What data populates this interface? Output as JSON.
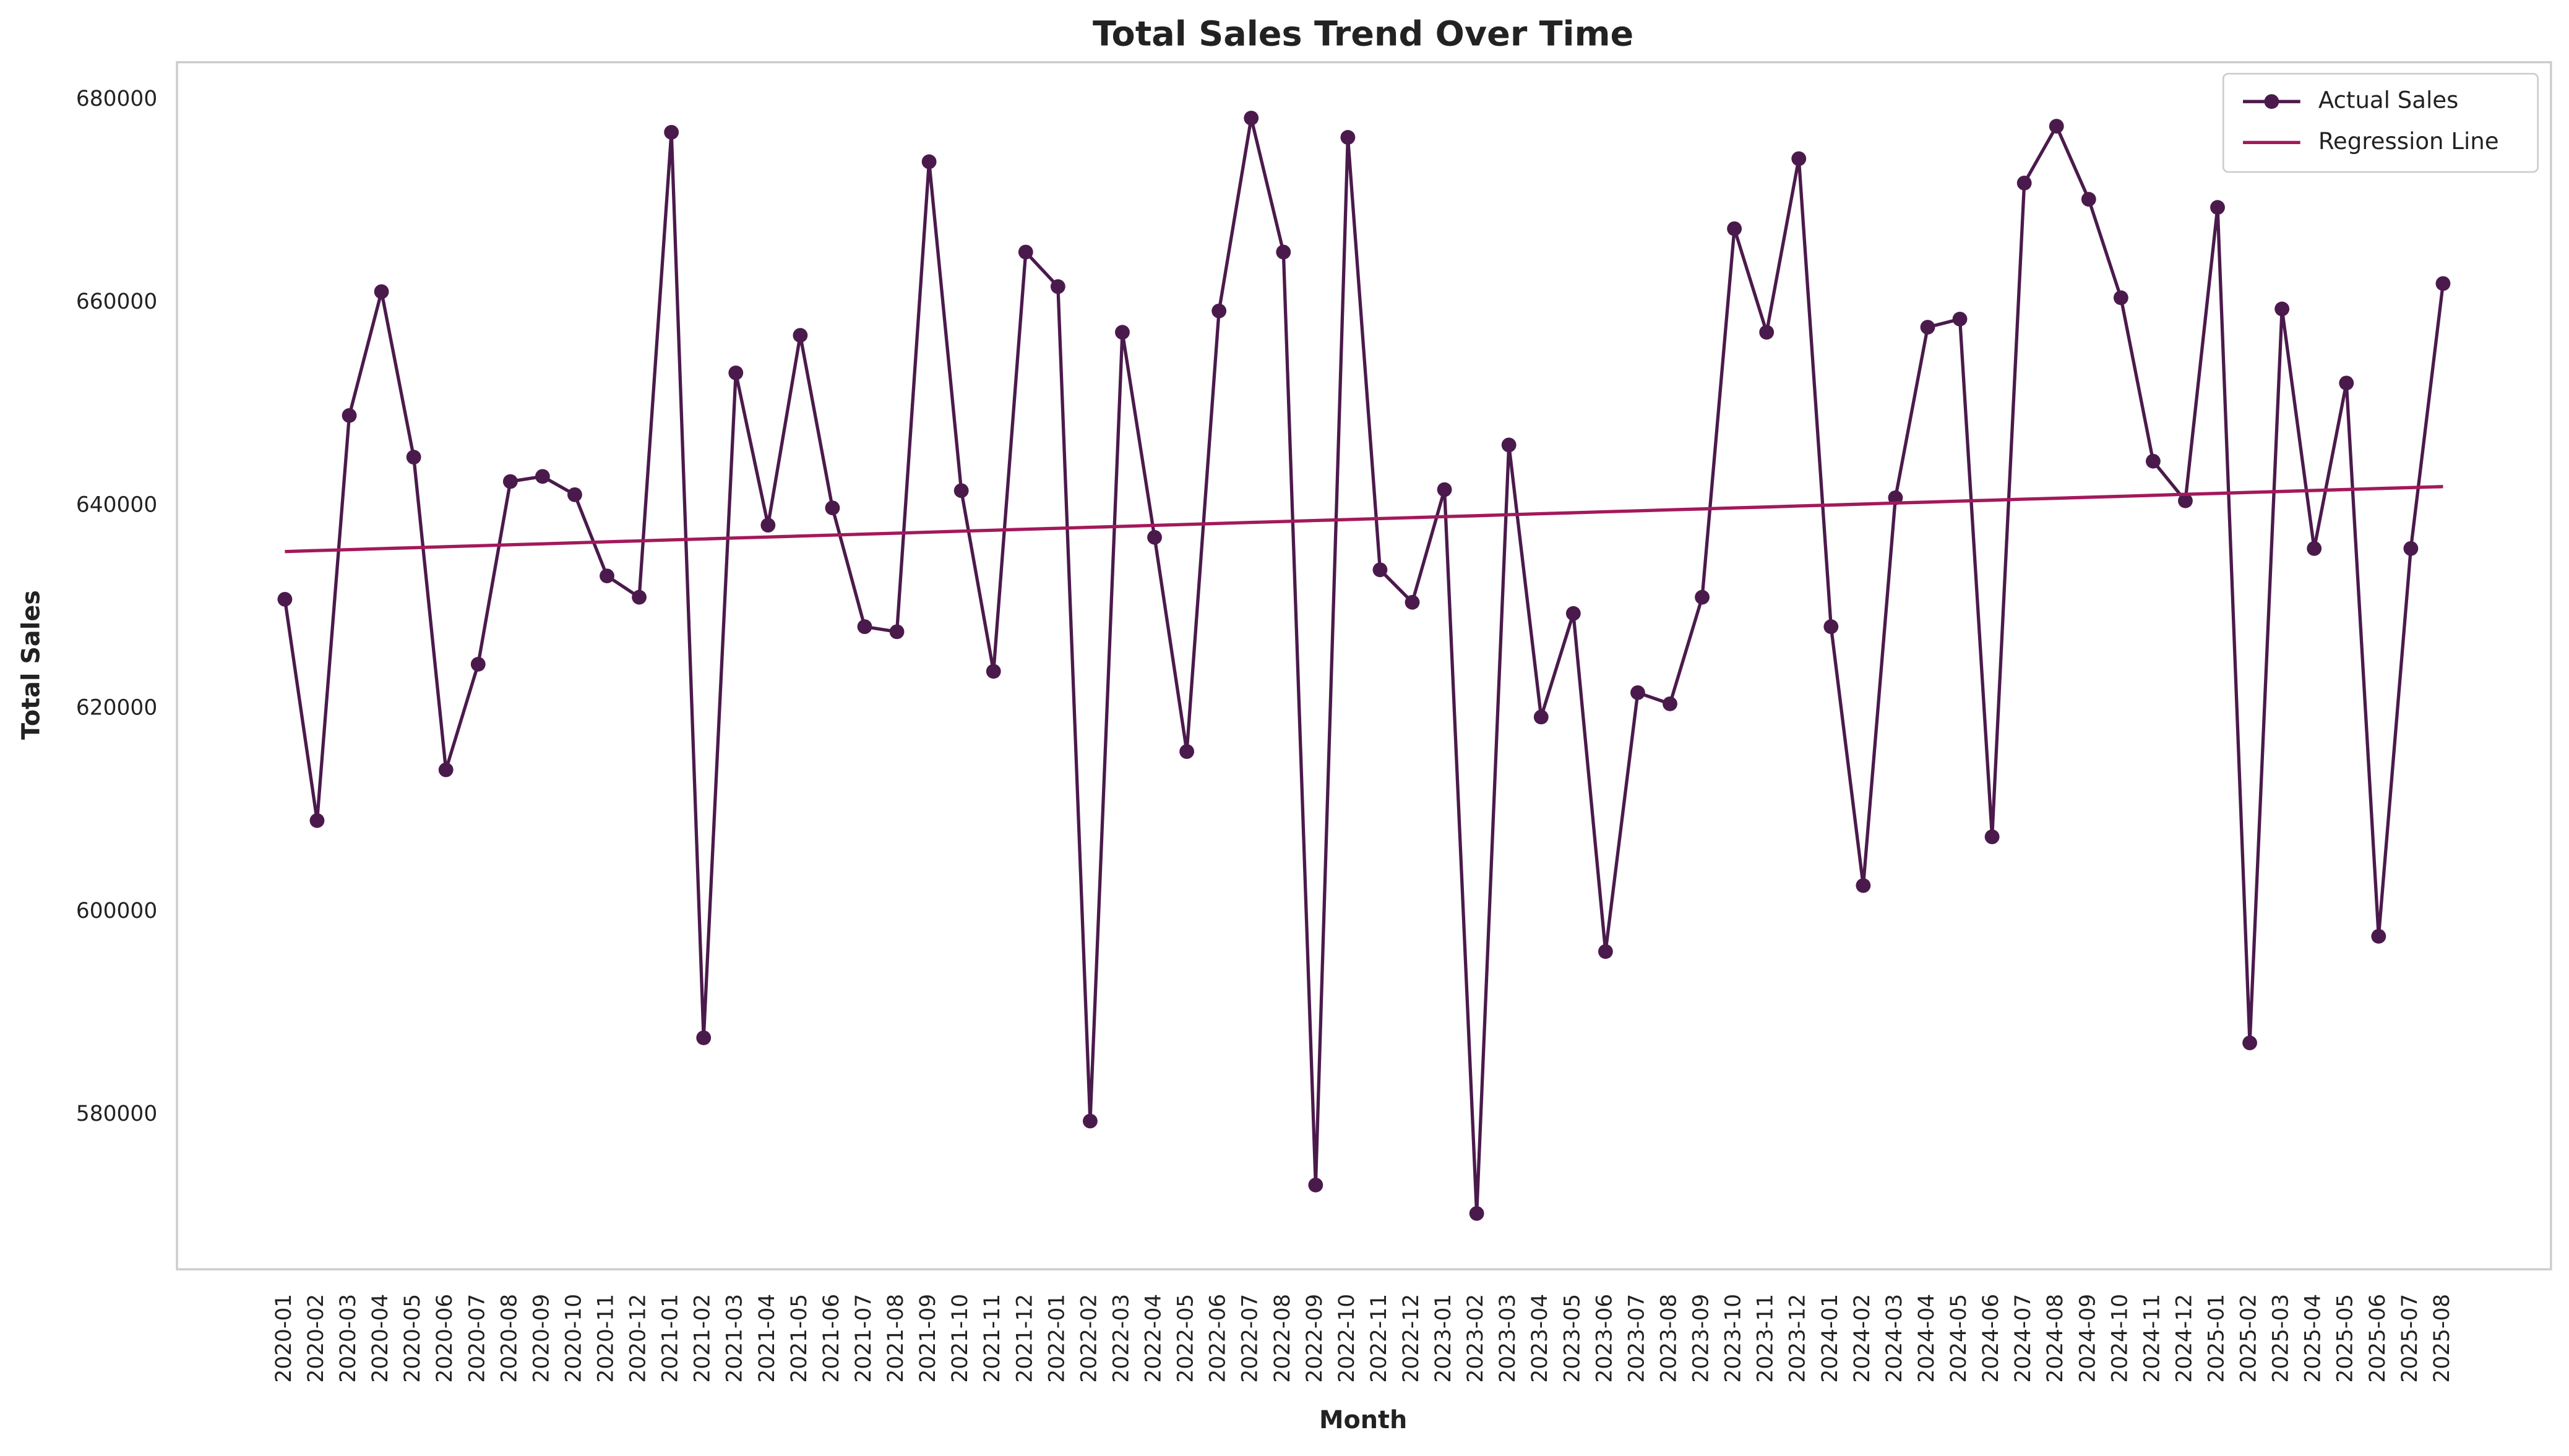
{
  "chart_data": {
    "type": "line",
    "title": "Total Sales Trend Over Time",
    "x_label": "Month",
    "y_label": "Total Sales",
    "categories": [
      "2020-01",
      "2020-02",
      "2020-03",
      "2020-04",
      "2020-05",
      "2020-06",
      "2020-07",
      "2020-08",
      "2020-09",
      "2020-10",
      "2020-11",
      "2020-12",
      "2021-01",
      "2021-02",
      "2021-03",
      "2021-04",
      "2021-05",
      "2021-06",
      "2021-07",
      "2021-08",
      "2021-09",
      "2021-10",
      "2021-11",
      "2021-12",
      "2022-01",
      "2022-02",
      "2022-03",
      "2022-04",
      "2022-05",
      "2022-06",
      "2022-07",
      "2022-08",
      "2022-09",
      "2022-10",
      "2022-11",
      "2022-12",
      "2023-01",
      "2023-02",
      "2023-03",
      "2023-04",
      "2023-05",
      "2023-06",
      "2023-07",
      "2023-08",
      "2023-09",
      "2023-10",
      "2023-11",
      "2023-12",
      "2024-01",
      "2024-02",
      "2024-03",
      "2024-04",
      "2024-05",
      "2024-06",
      "2024-07",
      "2024-08",
      "2024-09",
      "2024-10",
      "2024-11",
      "2024-12",
      "2025-01",
      "2025-02",
      "2025-03",
      "2025-04",
      "2025-05",
      "2025-06",
      "2025-07",
      "2025-08"
    ],
    "series": [
      {
        "name": "Actual Sales",
        "color": "#4b1a4c",
        "marker": true,
        "values": [
          630800,
          609000,
          648900,
          661100,
          644800,
          614000,
          624400,
          642400,
          642900,
          641100,
          633100,
          631000,
          676800,
          587600,
          653100,
          638100,
          656800,
          639800,
          628100,
          627600,
          673900,
          641500,
          623700,
          665000,
          661600,
          579400,
          657100,
          636900,
          615800,
          659200,
          678200,
          665000,
          573100,
          676300,
          633700,
          630500,
          641600,
          570300,
          646000,
          619200,
          629400,
          596100,
          621600,
          620500,
          631000,
          667300,
          657100,
          674200,
          628100,
          602600,
          640800,
          657600,
          658400,
          607400,
          671800,
          677400,
          670200,
          660500,
          644400,
          640500,
          669400,
          587100,
          659400,
          635800,
          652100,
          597600,
          635800,
          661900
        ]
      },
      {
        "name": "Regression Line",
        "color": "#a3195b",
        "marker": false,
        "values": [
          635500,
          635600,
          635690,
          635790,
          635880,
          635980,
          636070,
          636170,
          636260,
          636360,
          636460,
          636550,
          636650,
          636740,
          636840,
          636930,
          637030,
          637120,
          637220,
          637310,
          637410,
          637510,
          637600,
          637700,
          637790,
          637890,
          637980,
          638080,
          638170,
          638270,
          638370,
          638460,
          638560,
          638650,
          638750,
          638840,
          638940,
          639030,
          639130,
          639230,
          639320,
          639420,
          639510,
          639610,
          639700,
          639800,
          639890,
          639990,
          640080,
          640180,
          640280,
          640370,
          640470,
          640560,
          640660,
          640750,
          640850,
          640940,
          641040,
          641140,
          641230,
          641330,
          641420,
          641520,
          641610,
          641710,
          641800,
          641900
        ]
      }
    ],
    "ylim": [
      564800,
      683700
    ],
    "yticks": [
      580000,
      600000,
      620000,
      640000,
      660000,
      680000
    ],
    "grid": false,
    "legend": "upper right"
  }
}
